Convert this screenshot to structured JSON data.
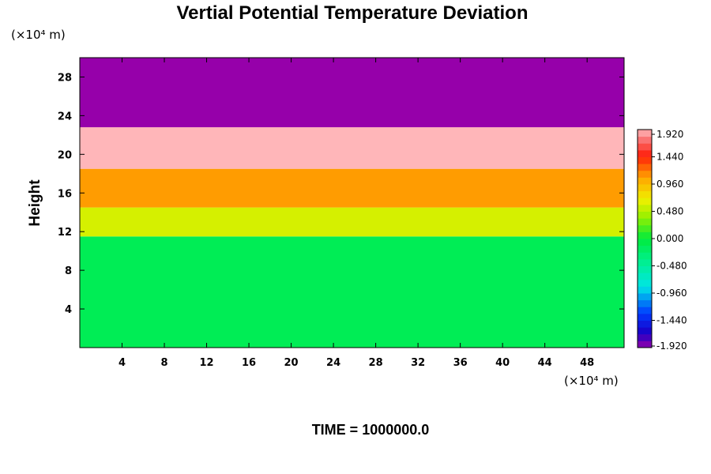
{
  "chart_data": {
    "type": "heatmap",
    "title": "Vertial Potential Temperature Deviation",
    "ylabel": "Height",
    "xunit": "(×10⁴ m)",
    "yunit": "(×10⁴ m)",
    "xlim": [
      0,
      51.5
    ],
    "ylim": [
      0,
      30
    ],
    "xticks": [
      4,
      8,
      12,
      16,
      20,
      24,
      28,
      32,
      36,
      40,
      44,
      48
    ],
    "yticks": [
      4,
      8,
      12,
      16,
      20,
      24,
      28
    ],
    "colorbar": {
      "range": [
        -1.92,
        1.92
      ],
      "step": 0.12,
      "tick_labels": [
        "1.920",
        "1.440",
        "0.960",
        "0.480",
        "0.000",
        "-0.480",
        "-0.960",
        "-1.440",
        "-1.920"
      ]
    },
    "field_layers": [
      {
        "from_height": 0,
        "to_height": 11.5,
        "deviation": -0.12
      },
      {
        "from_height": 11.5,
        "to_height": 14.5,
        "deviation": 0.6
      },
      {
        "from_height": 14.5,
        "to_height": 18.5,
        "deviation": 1.1
      },
      {
        "from_height": 18.5,
        "to_height": 22.8,
        "deviation": 1.92
      },
      {
        "from_height": 22.8,
        "to_height": 30,
        "deviation": -1.92
      }
    ],
    "footer": "TIME = 1000000.0"
  }
}
